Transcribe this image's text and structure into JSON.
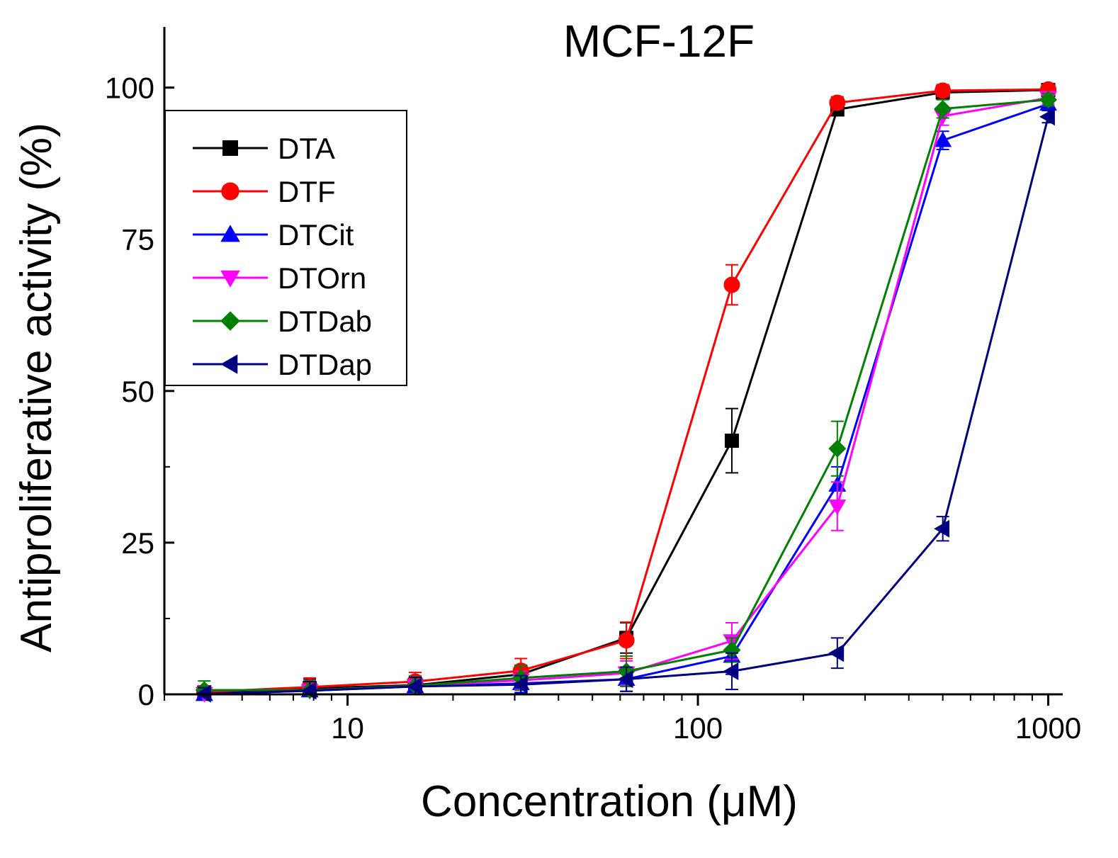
{
  "chart_data": {
    "type": "line",
    "title": "MCF-12F",
    "xlabel": "Concentration (μM)",
    "ylabel": "Antiproliferative activity (%)",
    "x_scale": "log",
    "xlim": [
      3,
      1100
    ],
    "ylim": [
      0,
      110
    ],
    "x_ticks": [
      10,
      100,
      1000
    ],
    "x_tick_labels": [
      "10",
      "100",
      "1000"
    ],
    "y_ticks": [
      0,
      25,
      50,
      75,
      100
    ],
    "y_tick_labels": [
      "0",
      "25",
      "50",
      "75",
      "100"
    ],
    "legend_position": "top-left",
    "x": [
      3.9,
      7.8,
      15.6,
      31.25,
      62.5,
      125,
      250,
      500,
      1000
    ],
    "series": [
      {
        "name": "DTA",
        "color": "#000000",
        "marker": "square",
        "values": [
          0.3,
          1.0,
          1.5,
          3.3,
          9.3,
          41.8,
          96.4,
          99.2,
          99.6
        ],
        "errors": [
          1.0,
          1.5,
          1.5,
          1.5,
          2.5,
          5.3,
          1.0,
          1.0,
          0.5
        ]
      },
      {
        "name": "DTF",
        "color": "#ff0000",
        "marker": "circle",
        "values": [
          0.4,
          1.2,
          2.1,
          3.9,
          8.9,
          67.5,
          97.5,
          99.5,
          99.7
        ],
        "errors": [
          1.0,
          1.5,
          1.5,
          2.0,
          3.0,
          3.3,
          1.0,
          1.0,
          0.5
        ]
      },
      {
        "name": "DTCit",
        "color": "#0000ff",
        "marker": "triangle-up",
        "values": [
          0.0,
          0.6,
          1.3,
          1.8,
          2.5,
          6.3,
          34.5,
          91.3,
          97.3
        ],
        "errors": [
          1.0,
          1.5,
          1.5,
          1.5,
          2.0,
          3.0,
          3.0,
          1.5,
          1.0
        ]
      },
      {
        "name": "DTOrn",
        "color": "#ff00ff",
        "marker": "triangle-down",
        "values": [
          0.1,
          0.6,
          1.4,
          2.3,
          3.5,
          8.8,
          31.0,
          95.3,
          98.3
        ],
        "errors": [
          1.0,
          1.5,
          1.5,
          1.5,
          2.0,
          3.0,
          4.0,
          1.5,
          1.0
        ]
      },
      {
        "name": "DTDab",
        "color": "#008000",
        "marker": "diamond",
        "values": [
          0.7,
          0.7,
          1.4,
          2.7,
          3.8,
          7.3,
          40.5,
          96.5,
          98.0
        ],
        "errors": [
          1.5,
          1.5,
          1.5,
          2.0,
          2.5,
          2.0,
          4.5,
          1.5,
          1.0
        ]
      },
      {
        "name": "DTDap",
        "color": "#000080",
        "marker": "triangle-left",
        "values": [
          0.1,
          0.6,
          1.3,
          1.6,
          2.5,
          3.8,
          6.8,
          27.3,
          95.2
        ],
        "errors": [
          1.0,
          1.5,
          1.5,
          1.5,
          2.0,
          3.0,
          2.5,
          2.0,
          1.0
        ]
      }
    ]
  }
}
